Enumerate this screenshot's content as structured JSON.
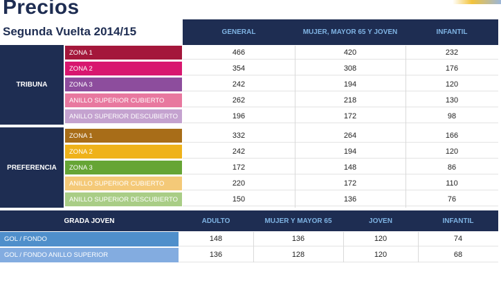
{
  "title": "Precios",
  "subtitle": "Segunda Vuelta 2014/15",
  "main_table": {
    "headers": [
      "GENERAL",
      "MUJER, MAYOR 65 Y JOVEN",
      "INFANTIL"
    ],
    "groups": [
      {
        "label": "TRIBUNA",
        "rows": [
          {
            "zone": "ZONA 1",
            "color": "#a4173b",
            "general": "466",
            "mujer": "420",
            "infantil": "232"
          },
          {
            "zone": "ZONA 2",
            "color": "#d8176f",
            "general": "354",
            "mujer": "308",
            "infantil": "176"
          },
          {
            "zone": "ZONA 3",
            "color": "#8d4d9d",
            "general": "242",
            "mujer": "194",
            "infantil": "120"
          },
          {
            "zone": "ANILLO SUPERIOR CUBIERTO",
            "color": "#e8789f",
            "general": "262",
            "mujer": "218",
            "infantil": "130"
          },
          {
            "zone": "ANILLO SUPERIOR DESCUBIERTO",
            "color": "#c4a2cf",
            "general": "196",
            "mujer": "172",
            "infantil": "98"
          }
        ]
      },
      {
        "label": "PREFERENCIA",
        "rows": [
          {
            "zone": "ZONA 1",
            "color": "#a86d18",
            "general": "332",
            "mujer": "264",
            "infantil": "166"
          },
          {
            "zone": "ZONA 2",
            "color": "#efb21a",
            "general": "242",
            "mujer": "194",
            "infantil": "120"
          },
          {
            "zone": "ZONA 3",
            "color": "#66a535",
            "general": "172",
            "mujer": "148",
            "infantil": "86"
          },
          {
            "zone": "ANILLO SUPERIOR CUBIERTO",
            "color": "#f4c978",
            "general": "220",
            "mujer": "172",
            "infantil": "110"
          },
          {
            "zone": "ANILLO SUPERIOR DESCUBIERTO",
            "color": "#a9cd86",
            "general": "150",
            "mujer": "136",
            "infantil": "76"
          }
        ]
      }
    ]
  },
  "grada_joven": {
    "label": "GRADA JOVEN",
    "headers": [
      "ADULTO",
      "MUJER Y MAYOR 65",
      "JOVEN",
      "INFANTIL"
    ],
    "rows": [
      {
        "zone": "GOL / FONDO",
        "color": "#4f8fcb",
        "values": [
          "148",
          "136",
          "120",
          "74"
        ]
      },
      {
        "zone": "GOL / FONDO ANILLO SUPERIOR",
        "color": "#83ace0",
        "values": [
          "136",
          "128",
          "120",
          "68"
        ]
      }
    ]
  }
}
